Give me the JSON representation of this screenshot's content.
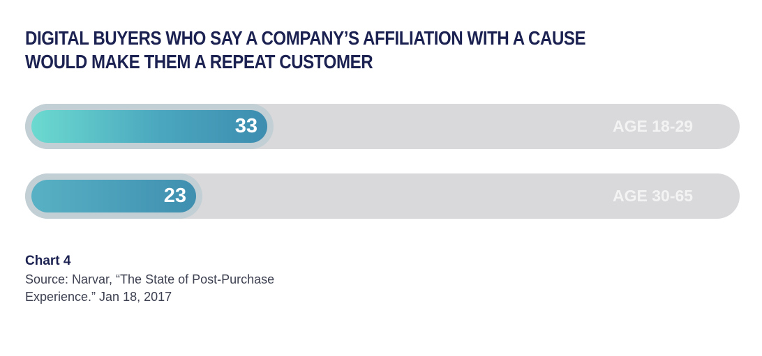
{
  "chart_data": {
    "type": "bar",
    "title": "DIGITAL BUYERS WHO SAY A COMPANY’S AFFILIATION WITH A CAUSE WOULD MAKE THEM A REPEAT CUSTOMER",
    "categories": [
      "AGE 18-29",
      "AGE 30-65"
    ],
    "values": [
      33,
      23
    ],
    "value_labels": [
      "33",
      "23"
    ],
    "xlim": [
      0,
      100
    ],
    "orientation": "horizontal",
    "grid": false,
    "colors": [
      "#6cdad0",
      "#3d8db0",
      "#d9d9db"
    ]
  },
  "footer": {
    "chart_number": "Chart 4",
    "source": "Source: Narvar, “The State of Post-Purchase Experience.” Jan 18, 2017"
  }
}
